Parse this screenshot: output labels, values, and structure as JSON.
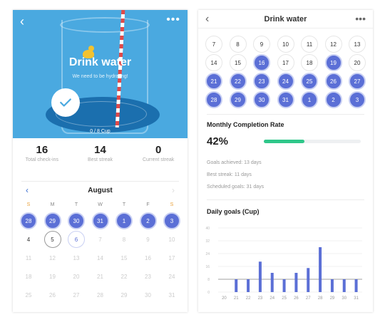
{
  "left": {
    "title": "Drink water",
    "subtitle": "We need to be hydrating!",
    "cup_progress": "0 / 8 Cup",
    "stats": [
      {
        "value": "16",
        "label": "Total check-ins"
      },
      {
        "value": "14",
        "label": "Best streak"
      },
      {
        "value": "0",
        "label": "Current streak"
      }
    ],
    "month": "August",
    "weekdays": [
      "S",
      "M",
      "T",
      "W",
      "T",
      "F",
      "S"
    ],
    "rows": [
      [
        {
          "d": "28",
          "s": "done"
        },
        {
          "d": "29",
          "s": "done"
        },
        {
          "d": "30",
          "s": "done"
        },
        {
          "d": "31",
          "s": "done"
        },
        {
          "d": "1",
          "s": "done"
        },
        {
          "d": "2",
          "s": "done"
        },
        {
          "d": "3",
          "s": "done"
        }
      ],
      [
        {
          "d": "4",
          "s": "normal"
        },
        {
          "d": "5",
          "s": "today"
        },
        {
          "d": "6",
          "s": "blue"
        },
        {
          "d": "7",
          "s": "future"
        },
        {
          "d": "8",
          "s": "future"
        },
        {
          "d": "9",
          "s": "future"
        },
        {
          "d": "10",
          "s": "future"
        }
      ],
      [
        {
          "d": "11",
          "s": "future"
        },
        {
          "d": "12",
          "s": "future"
        },
        {
          "d": "13",
          "s": "future"
        },
        {
          "d": "14",
          "s": "future"
        },
        {
          "d": "15",
          "s": "future"
        },
        {
          "d": "16",
          "s": "future"
        },
        {
          "d": "17",
          "s": "future"
        }
      ],
      [
        {
          "d": "18",
          "s": "future"
        },
        {
          "d": "19",
          "s": "future"
        },
        {
          "d": "20",
          "s": "future"
        },
        {
          "d": "21",
          "s": "future"
        },
        {
          "d": "22",
          "s": "future"
        },
        {
          "d": "23",
          "s": "future"
        },
        {
          "d": "24",
          "s": "future"
        }
      ],
      [
        {
          "d": "25",
          "s": "future"
        },
        {
          "d": "26",
          "s": "future"
        },
        {
          "d": "27",
          "s": "future"
        },
        {
          "d": "28",
          "s": "future"
        },
        {
          "d": "29",
          "s": "future"
        },
        {
          "d": "30",
          "s": "future"
        },
        {
          "d": "31",
          "s": "future"
        }
      ]
    ]
  },
  "right": {
    "title": "Drink water",
    "rows": [
      [
        {
          "d": "7",
          "s": "n"
        },
        {
          "d": "8",
          "s": "n"
        },
        {
          "d": "9",
          "s": "n"
        },
        {
          "d": "10",
          "s": "n"
        },
        {
          "d": "11",
          "s": "n"
        },
        {
          "d": "12",
          "s": "n"
        },
        {
          "d": "13",
          "s": "n"
        }
      ],
      [
        {
          "d": "14",
          "s": "n"
        },
        {
          "d": "15",
          "s": "n"
        },
        {
          "d": "16",
          "s": "done"
        },
        {
          "d": "17",
          "s": "n"
        },
        {
          "d": "18",
          "s": "n"
        },
        {
          "d": "19",
          "s": "done"
        },
        {
          "d": "20",
          "s": "n"
        }
      ],
      [
        {
          "d": "21",
          "s": "done"
        },
        {
          "d": "22",
          "s": "done"
        },
        {
          "d": "23",
          "s": "done"
        },
        {
          "d": "24",
          "s": "done"
        },
        {
          "d": "25",
          "s": "done"
        },
        {
          "d": "26",
          "s": "done"
        },
        {
          "d": "27",
          "s": "done"
        }
      ],
      [
        {
          "d": "28",
          "s": "done"
        },
        {
          "d": "29",
          "s": "done"
        },
        {
          "d": "30",
          "s": "done"
        },
        {
          "d": "31",
          "s": "done"
        },
        {
          "d": "1",
          "s": "done"
        },
        {
          "d": "2",
          "s": "done"
        },
        {
          "d": "3",
          "s": "done"
        }
      ]
    ],
    "monthly_title": "Monthly Completion Rate",
    "rate_text": "42%",
    "rate_value": 0.42,
    "goals_achieved": "Goals achieved: 13 days",
    "best_streak": "Best streak: 11 days",
    "scheduled": "Scheduled goals: 31 days",
    "daily_title": "Daily goals (Cup)"
  },
  "chart_data": {
    "type": "bar",
    "title": "Daily goals (Cup)",
    "categories": [
      "20",
      "21",
      "22",
      "23",
      "24",
      "25",
      "26",
      "27",
      "28",
      "29",
      "30",
      "31"
    ],
    "values": [
      0,
      8,
      8,
      19,
      12,
      8,
      12,
      15,
      28,
      8,
      8,
      8
    ],
    "yticks": [
      0,
      8,
      16,
      24,
      32,
      40
    ],
    "ylim": [
      0,
      40
    ],
    "goal_line": 8,
    "color": "#5b6fd6"
  }
}
